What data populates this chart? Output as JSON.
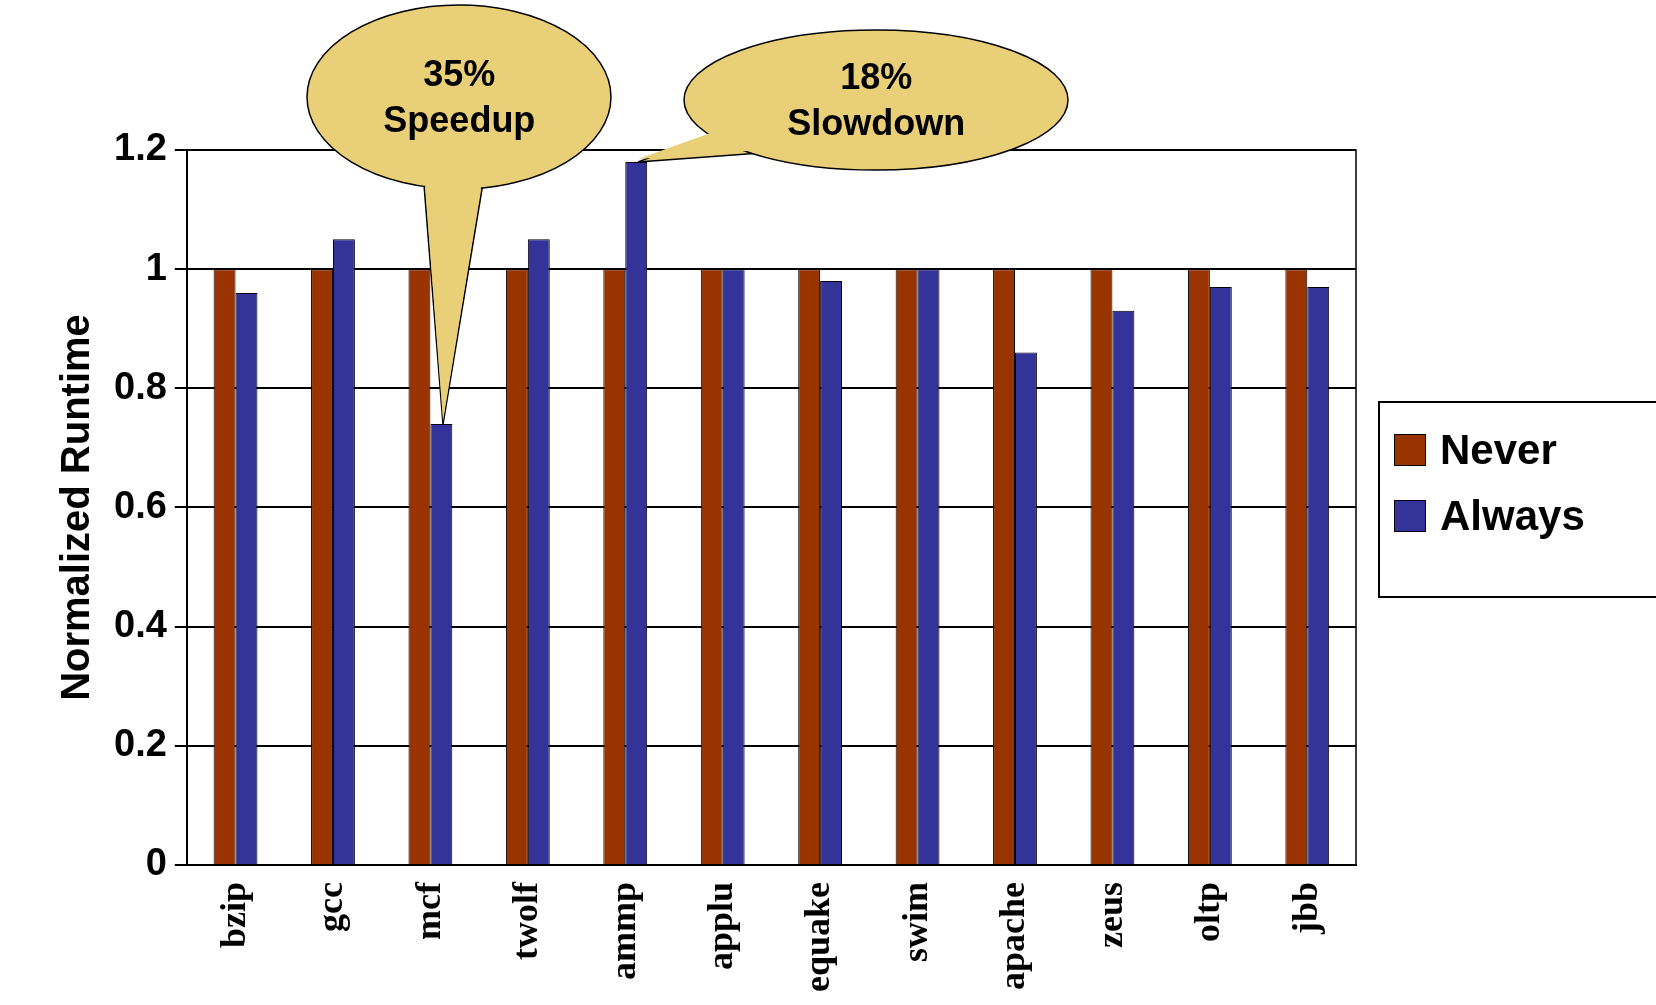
{
  "chart_data": {
    "type": "bar",
    "ylabel": "Normalized Runtime",
    "categories": [
      "bzip",
      "gcc",
      "mcf",
      "twolf",
      "ammp",
      "applu",
      "equake",
      "swim",
      "apache",
      "zeus",
      "oltp",
      "jbb"
    ],
    "series": [
      {
        "name": "Never",
        "color": "#993300",
        "values": [
          1,
          1,
          1,
          1,
          1,
          1,
          1,
          1,
          1,
          1,
          1,
          1
        ]
      },
      {
        "name": "Always",
        "color": "#333399",
        "values": [
          0.96,
          1.05,
          0.74,
          1.05,
          1.18,
          1.0,
          0.98,
          1.0,
          0.86,
          0.93,
          0.97,
          0.97
        ]
      }
    ],
    "ylim": [
      0,
      1.2
    ],
    "yticks": [
      0,
      0.2,
      0.4,
      0.6,
      0.8,
      1,
      1.2
    ],
    "grid": "y",
    "legend": "right",
    "annotations": [
      "35%\nSpeedup",
      "18%\nSlowdown"
    ]
  }
}
